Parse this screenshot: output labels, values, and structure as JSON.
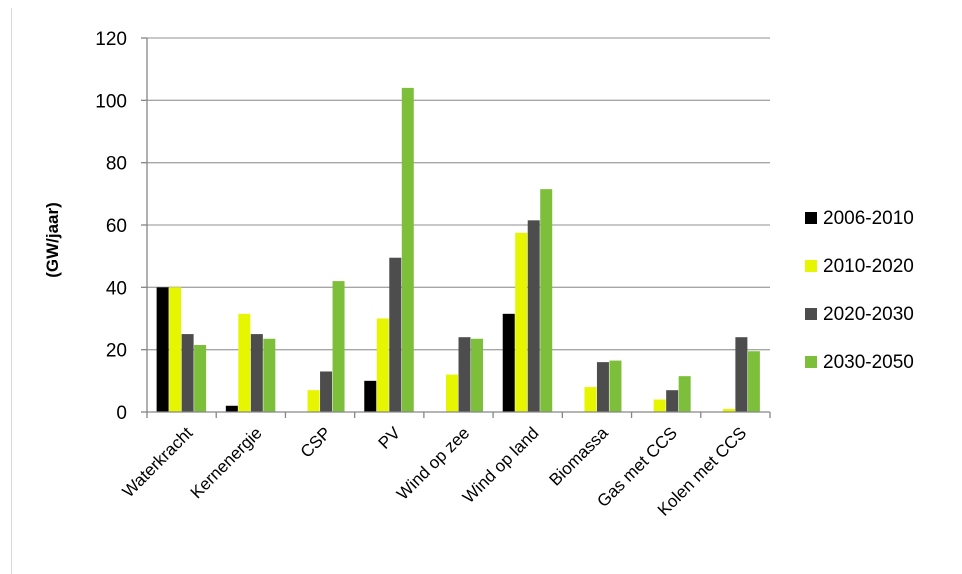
{
  "chart_data": {
    "type": "bar",
    "title": "",
    "xlabel": "",
    "ylabel": "(GW/jaar)",
    "ylim": [
      0,
      120
    ],
    "yticks": [
      0,
      20,
      40,
      60,
      80,
      100,
      120
    ],
    "grid": true,
    "legend_position": "right",
    "categories": [
      "Waterkracht",
      "Kernenergie",
      "CSP",
      "PV",
      "Wind op zee",
      "Wind op land",
      "Biomassa",
      "Gas met CCS",
      "Kolen met CCS"
    ],
    "series": [
      {
        "name": "2006-2010",
        "color": "#000000",
        "values": [
          40,
          2,
          0,
          10,
          0,
          31.5,
          0,
          0,
          0
        ]
      },
      {
        "name": "2010-2020",
        "color": "#e6f500",
        "values": [
          40,
          31.5,
          7,
          30,
          12,
          57.5,
          8,
          4,
          1
        ]
      },
      {
        "name": "2020-2030",
        "color": "#4d4d4d",
        "values": [
          25,
          25,
          13,
          49.5,
          24,
          61.5,
          16,
          7,
          24
        ]
      },
      {
        "name": "2030-2050",
        "color": "#7dbf3a",
        "values": [
          21.5,
          23.5,
          42,
          104,
          23.5,
          71.5,
          16.5,
          11.5,
          19.5
        ]
      }
    ]
  }
}
